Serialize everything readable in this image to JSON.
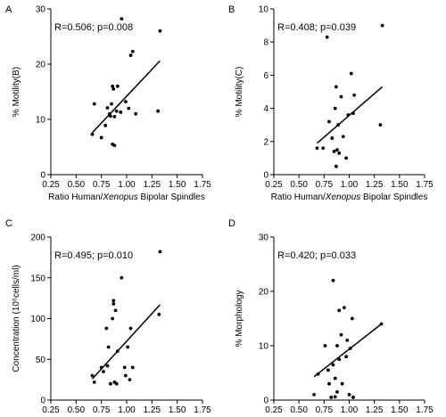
{
  "chart_data": [
    {
      "panel": "A",
      "type": "scatter",
      "stat": "R=0.506; p=0.008",
      "xlabel": "Ratio Human/Xenopus Bipolar Spindles",
      "ylabel": "% Motility(B)",
      "xlim": [
        0.25,
        1.75
      ],
      "ylim": [
        0,
        30
      ],
      "xticks": [
        "0.25",
        "0.50",
        "0.75",
        "1.00",
        "1.25",
        "1.50",
        "1.75"
      ],
      "yticks": [
        "0",
        "10",
        "20",
        "30"
      ],
      "x": [
        0.66,
        0.68,
        0.75,
        0.79,
        0.81,
        0.83,
        0.84,
        0.85,
        0.86,
        0.86,
        0.87,
        0.88,
        0.88,
        0.9,
        0.91,
        0.94,
        0.95,
        0.99,
        1.02,
        1.04,
        1.06,
        1.09,
        1.31,
        1.33
      ],
      "y": [
        7.3,
        12.8,
        6.7,
        8.9,
        12.1,
        11.0,
        10.6,
        12.8,
        5.5,
        16.0,
        15.5,
        5.3,
        10.5,
        11.5,
        16.0,
        11.3,
        28.2,
        13.2,
        12.0,
        21.6,
        22.3,
        11.0,
        11.5,
        26.0
      ],
      "fit": {
        "x": [
          0.66,
          1.33
        ],
        "y": [
          7.6,
          20.6
        ]
      }
    },
    {
      "panel": "B",
      "type": "scatter",
      "stat": "R=0.408; p=0.039",
      "xlabel": "Ratio Human/Xenopus Bipolar Spindles",
      "ylabel": "% Motility(C)",
      "xlim": [
        0.25,
        1.75
      ],
      "ylim": [
        0,
        10
      ],
      "xticks": [
        "0.25",
        "0.50",
        "0.75",
        "1.00",
        "1.25",
        "1.50",
        "1.75"
      ],
      "yticks": [
        "0",
        "2",
        "4",
        "6",
        "8",
        "10"
      ],
      "x": [
        0.68,
        0.74,
        0.78,
        0.8,
        0.83,
        0.85,
        0.86,
        0.87,
        0.87,
        0.88,
        0.89,
        0.9,
        0.92,
        0.94,
        0.97,
        0.99,
        1.02,
        1.04,
        1.05,
        1.31,
        1.33
      ],
      "y": [
        1.6,
        1.6,
        8.3,
        3.2,
        2.2,
        1.4,
        4.0,
        5.3,
        0.5,
        1.5,
        3.0,
        1.3,
        4.7,
        2.3,
        1.0,
        3.6,
        6.1,
        3.7,
        4.8,
        3.0,
        9.0
      ],
      "fit": {
        "x": [
          0.68,
          1.33
        ],
        "y": [
          1.9,
          5.3
        ]
      }
    },
    {
      "panel": "C",
      "type": "scatter",
      "stat": "R=0.495; p=0.010",
      "xlabel": "Ratio Human/Xenopus Bipolar Spindles",
      "ylabel": "Concentration (10⁶cells/ml)",
      "xlim": [
        0.25,
        1.75
      ],
      "ylim": [
        0,
        200
      ],
      "xticks": [
        "0.25",
        "0.50",
        "0.75",
        "1.00",
        "1.25",
        "1.50",
        "1.75"
      ],
      "yticks": [
        "0",
        "50",
        "100",
        "150",
        "200"
      ],
      "x": [
        0.66,
        0.68,
        0.75,
        0.77,
        0.8,
        0.81,
        0.82,
        0.84,
        0.86,
        0.87,
        0.87,
        0.88,
        0.89,
        0.9,
        0.91,
        0.95,
        0.98,
        0.99,
        1.01,
        1.03,
        1.04,
        1.06,
        1.32,
        1.33
      ],
      "y": [
        30,
        22,
        40,
        35,
        88,
        42,
        65,
        20,
        100,
        118,
        122,
        22,
        110,
        20,
        60,
        150,
        40,
        30,
        65,
        25,
        88,
        40,
        105,
        182
      ],
      "fit": {
        "x": [
          0.66,
          1.33
        ],
        "y": [
          26,
          117
        ]
      }
    },
    {
      "panel": "D",
      "type": "scatter",
      "stat": "R=0.420; p=0.033",
      "xlabel": "Ratio Human/Xenopus Bipolar Spindles",
      "ylabel": "% Morphology",
      "xlim": [
        0.25,
        1.75
      ],
      "ylim": [
        0,
        30
      ],
      "xticks": [
        "0.25",
        "0.50",
        "0.75",
        "1.00",
        "1.25",
        "1.50",
        "1.75"
      ],
      "yticks": [
        "0",
        "10",
        "20",
        "30"
      ],
      "x": [
        0.65,
        0.69,
        0.76,
        0.79,
        0.8,
        0.82,
        0.84,
        0.84,
        0.86,
        0.86,
        0.88,
        0.88,
        0.9,
        0.9,
        0.92,
        0.93,
        0.95,
        0.97,
        0.98,
        1.0,
        1.01,
        1.03,
        1.04,
        1.32
      ],
      "y": [
        1.0,
        4.8,
        10.0,
        5.5,
        3.0,
        0.5,
        6.5,
        22.0,
        0.6,
        4.0,
        1.5,
        10.0,
        7.5,
        16.5,
        12.0,
        3.0,
        17.0,
        8.0,
        11.0,
        1.0,
        9.5,
        15.0,
        0.5,
        14.0
      ],
      "fit": {
        "x": [
          0.65,
          1.32
        ],
        "y": [
          4.3,
          14.0
        ]
      }
    }
  ]
}
